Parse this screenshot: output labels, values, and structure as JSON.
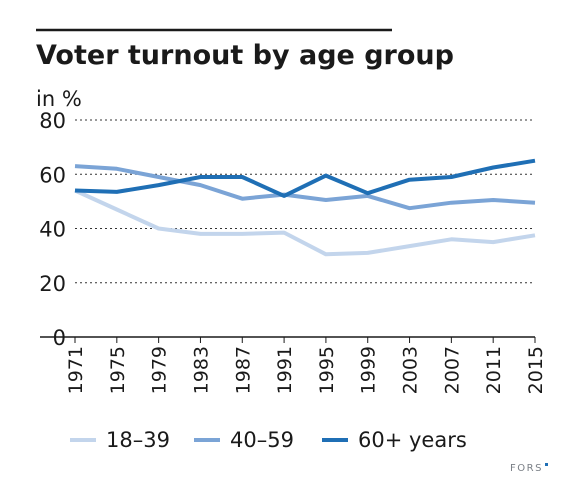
{
  "chart_data": {
    "type": "line",
    "title": "Voter turnout by age group",
    "unit_label": "in %",
    "ylabel": "",
    "xlabel": "",
    "ylim": [
      0,
      80
    ],
    "yticks": [
      "0",
      "20",
      "40",
      "60",
      "80"
    ],
    "grid": "horizontal-dashed",
    "legend_position": "bottom",
    "categories": [
      "1971",
      "1975",
      "1979",
      "1983",
      "1987",
      "1991",
      "1995",
      "1999",
      "2003",
      "2007",
      "2011",
      "2015"
    ],
    "series": [
      {
        "name": "18–39",
        "color": "#c3d5ec",
        "values": [
          54,
          47,
          40,
          38,
          38,
          38.5,
          30.5,
          31,
          33.5,
          36,
          35,
          37.5
        ]
      },
      {
        "name": "40–59",
        "color": "#7ba4d6",
        "values": [
          63,
          62,
          59,
          56,
          51,
          52.5,
          50.5,
          52,
          47.5,
          49.5,
          50.5,
          49.5
        ]
      },
      {
        "name": "60+ years",
        "color": "#1f6fb5",
        "values": [
          54,
          53.5,
          56,
          59,
          59,
          52,
          59.5,
          53,
          58,
          59,
          62.5,
          65
        ]
      }
    ]
  },
  "brand": {
    "name": "FORS",
    "color": "#1f6fb5"
  }
}
